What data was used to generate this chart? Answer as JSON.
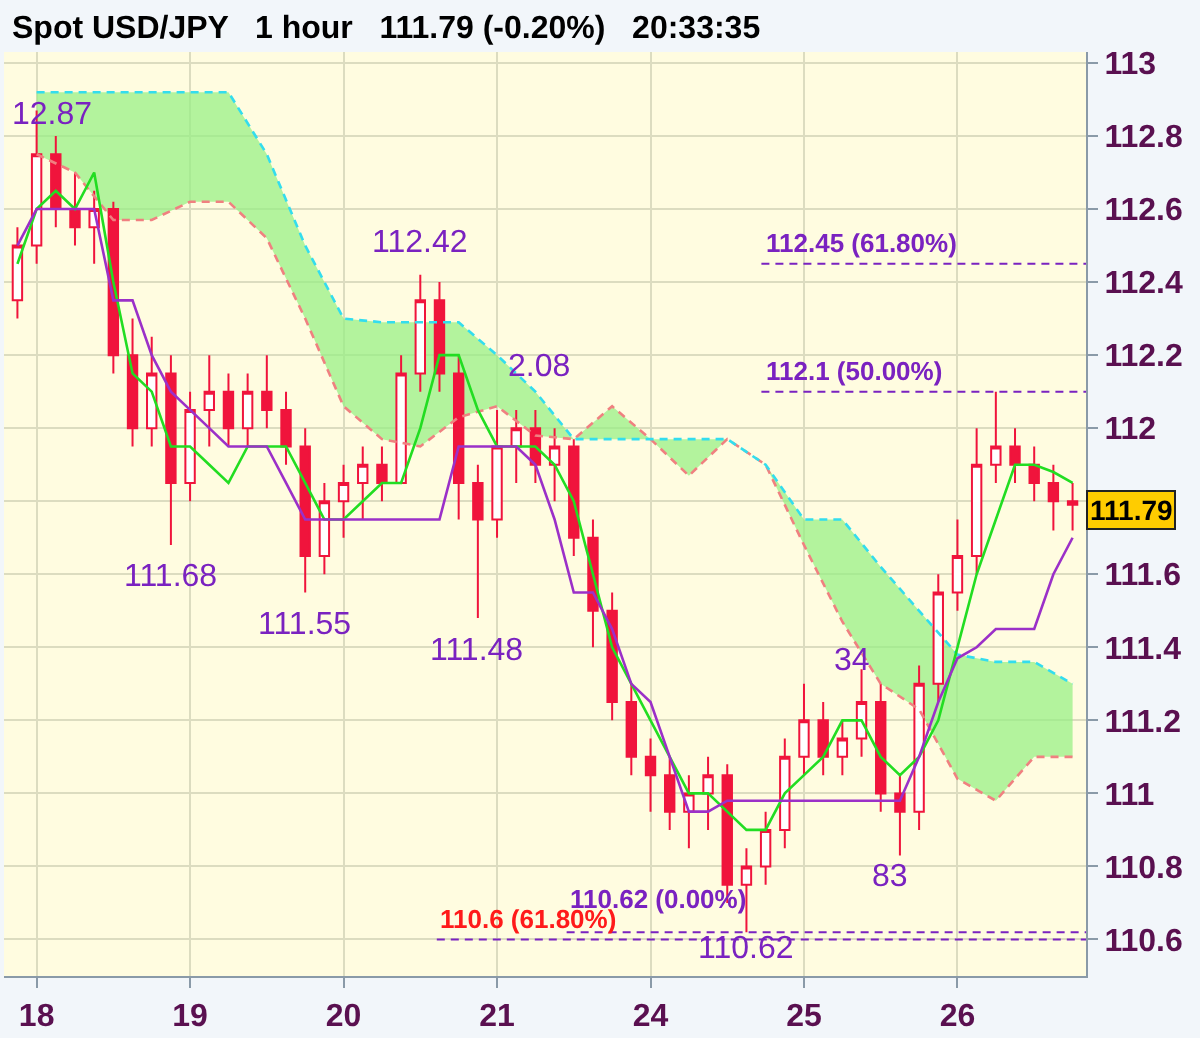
{
  "chart_data": {
    "type": "candlestick",
    "title": "Spot USD/JPY   1 hour   111.79 (-0.20%)   20:33:35",
    "categories": [
      null,
      "18",
      null,
      null,
      null,
      null,
      null,
      null,
      null,
      "19",
      null,
      null,
      null,
      null,
      null,
      null,
      null,
      "20",
      null,
      null,
      null,
      null,
      null,
      null,
      null,
      "21",
      null,
      null,
      null,
      null,
      null,
      null,
      null,
      "24",
      null,
      null,
      null,
      null,
      null,
      null,
      null,
      "25",
      null,
      null,
      null,
      null,
      null,
      null,
      null,
      "26",
      null,
      null,
      null,
      null,
      null,
      null
    ],
    "series": [
      {
        "type": "line",
        "color": "#f08080",
        "line_style": "dashed",
        "values": [
          null,
          112.75,
          null,
          112.7,
          null,
          112.57,
          null,
          112.57,
          null,
          112.62,
          null,
          112.62,
          null,
          112.52,
          null,
          112.3,
          null,
          112.06,
          null,
          111.97,
          null,
          111.95,
          null,
          112.03,
          null,
          112.06,
          null,
          111.98,
          null,
          111.97,
          null,
          112.06,
          null,
          111.97,
          null,
          111.87,
          null,
          111.97,
          null,
          111.9,
          null,
          111.68,
          null,
          111.47,
          null,
          111.3,
          null,
          111.23,
          null,
          111.04,
          null,
          110.98,
          null,
          111.1,
          null,
          111.1
        ]
      },
      {
        "type": "line",
        "color": "#33ddee",
        "line_style": "dashed",
        "lower": [
          null,
          112.75,
          null,
          112.7,
          null,
          112.57,
          null,
          112.57,
          null,
          112.62,
          null,
          112.62,
          null,
          112.52,
          null,
          112.3,
          null,
          112.06,
          null,
          111.97,
          null,
          111.95,
          null,
          112.03,
          null,
          112.06,
          null,
          111.98,
          null,
          111.97,
          null,
          112.06,
          null,
          111.97,
          null,
          111.87,
          null,
          111.97,
          null,
          111.9,
          null,
          111.68,
          null,
          111.47,
          null,
          111.3,
          null,
          111.23,
          null,
          111.04,
          null,
          110.98,
          null,
          111.1,
          null,
          111.1
        ],
        "upper": [
          null,
          112.92,
          null,
          112.92,
          null,
          112.92,
          null,
          112.92,
          null,
          112.92,
          null,
          112.92,
          null,
          112.75,
          null,
          112.5,
          null,
          112.3,
          null,
          112.29,
          null,
          112.29,
          null,
          112.29,
          null,
          112.2,
          null,
          112.1,
          null,
          111.97,
          null,
          111.97,
          null,
          111.97,
          null,
          111.97,
          null,
          111.97,
          null,
          111.9,
          null,
          111.75,
          null,
          111.75,
          null,
          111.62,
          null,
          111.5,
          null,
          111.38,
          null,
          111.36,
          null,
          111.36,
          null,
          111.3
        ],
        "values": [
          null,
          112.92,
          null,
          112.92,
          null,
          112.92,
          null,
          112.92,
          null,
          112.92,
          null,
          112.92,
          null,
          112.75,
          null,
          112.5,
          null,
          112.3,
          null,
          112.29,
          null,
          112.29,
          null,
          112.29,
          null,
          112.2,
          null,
          112.1,
          null,
          111.97,
          null,
          111.97,
          null,
          111.97,
          null,
          111.97,
          null,
          111.97,
          null,
          111.9,
          null,
          111.75,
          null,
          111.75,
          null,
          111.62,
          null,
          111.5,
          null,
          111.38,
          null,
          111.36,
          null,
          111.36,
          null,
          111.3
        ]
      },
      {
        "type": "line",
        "color": "#22dd22",
        "line_style": "solid",
        "values": [
          112.45,
          112.6,
          112.65,
          112.6,
          112.7,
          112.4,
          112.15,
          112.1,
          111.95,
          111.95,
          111.9,
          111.85,
          111.95,
          111.95,
          111.95,
          111.85,
          111.75,
          111.75,
          111.8,
          111.85,
          111.85,
          112.0,
          112.2,
          112.2,
          112.05,
          111.95,
          111.95,
          111.95,
          111.9,
          111.8,
          111.6,
          111.4,
          111.3,
          111.2,
          111.1,
          111.0,
          111.0,
          110.95,
          110.9,
          110.9,
          111.0,
          111.05,
          111.1,
          111.2,
          111.2,
          111.1,
          111.05,
          111.1,
          111.2,
          111.4,
          111.6,
          111.75,
          111.9,
          111.9,
          111.88,
          111.85
        ]
      },
      {
        "type": "line",
        "color": "#9b30c8",
        "line_style": "solid",
        "values": [
          112.5,
          112.6,
          112.6,
          112.6,
          112.6,
          112.35,
          112.35,
          112.2,
          112.1,
          112.05,
          112.0,
          111.95,
          111.95,
          111.95,
          111.85,
          111.75,
          111.75,
          111.75,
          111.75,
          111.75,
          111.75,
          111.75,
          111.75,
          111.95,
          111.95,
          111.95,
          111.95,
          111.9,
          111.75,
          111.55,
          111.55,
          111.45,
          111.3,
          111.25,
          111.1,
          110.95,
          110.95,
          110.98,
          110.98,
          110.98,
          110.98,
          110.98,
          110.98,
          110.98,
          110.98,
          110.98,
          110.98,
          111.1,
          111.25,
          111.37,
          111.4,
          111.45,
          111.45,
          111.45,
          111.6,
          111.7
        ]
      },
      {
        "color": "#f0143c",
        "ohlc": [
          [
            112.35,
            112.55,
            112.3,
            112.5
          ],
          [
            112.5,
            112.87,
            112.45,
            112.75
          ],
          [
            112.75,
            112.8,
            112.55,
            112.6
          ],
          [
            112.6,
            112.7,
            112.5,
            112.55
          ],
          [
            112.55,
            112.65,
            112.45,
            112.6
          ],
          [
            112.6,
            112.62,
            112.15,
            112.2
          ],
          [
            112.2,
            112.3,
            111.95,
            112.0
          ],
          [
            112.0,
            112.25,
            111.95,
            112.15
          ],
          [
            112.15,
            112.2,
            111.68,
            111.85
          ],
          [
            111.85,
            112.1,
            111.8,
            112.05
          ],
          [
            112.05,
            112.2,
            111.95,
            112.1
          ],
          [
            112.1,
            112.15,
            111.95,
            112.0
          ],
          [
            112.0,
            112.15,
            111.95,
            112.1
          ],
          [
            112.1,
            112.2,
            112.0,
            112.05
          ],
          [
            112.05,
            112.1,
            111.9,
            111.95
          ],
          [
            111.95,
            112.0,
            111.55,
            111.65
          ],
          [
            111.65,
            111.85,
            111.6,
            111.8
          ],
          [
            111.8,
            111.9,
            111.7,
            111.85
          ],
          [
            111.85,
            111.95,
            111.75,
            111.9
          ],
          [
            111.9,
            111.95,
            111.8,
            111.85
          ],
          [
            111.85,
            112.2,
            111.85,
            112.15
          ],
          [
            112.15,
            112.42,
            112.1,
            112.35
          ],
          [
            112.35,
            112.4,
            112.1,
            112.15
          ],
          [
            112.15,
            112.2,
            111.75,
            111.85
          ],
          [
            111.85,
            111.9,
            111.48,
            111.75
          ],
          [
            111.75,
            112.05,
            111.7,
            111.95
          ],
          [
            111.95,
            112.05,
            111.85,
            112.0
          ],
          [
            112.0,
            112.05,
            111.85,
            111.9
          ],
          [
            111.9,
            112.0,
            111.8,
            111.95
          ],
          [
            111.95,
            111.97,
            111.65,
            111.7
          ],
          [
            111.7,
            111.75,
            111.4,
            111.5
          ],
          [
            111.5,
            111.55,
            111.2,
            111.25
          ],
          [
            111.25,
            111.3,
            111.05,
            111.1
          ],
          [
            111.1,
            111.15,
            110.95,
            111.05
          ],
          [
            111.05,
            111.1,
            110.9,
            110.95
          ],
          [
            110.95,
            111.05,
            110.85,
            111.0
          ],
          [
            111.0,
            111.1,
            110.9,
            111.05
          ],
          [
            111.05,
            111.08,
            110.7,
            110.75
          ],
          [
            110.75,
            110.85,
            110.62,
            110.8
          ],
          [
            110.8,
            110.95,
            110.75,
            110.9
          ],
          [
            110.9,
            111.15,
            110.85,
            111.1
          ],
          [
            111.1,
            111.3,
            111.05,
            111.2
          ],
          [
            111.2,
            111.25,
            111.05,
            111.1
          ],
          [
            111.1,
            111.2,
            111.05,
            111.15
          ],
          [
            111.15,
            111.34,
            111.1,
            111.25
          ],
          [
            111.25,
            111.3,
            110.95,
            111.0
          ],
          [
            111.0,
            111.05,
            110.83,
            110.95
          ],
          [
            110.95,
            111.35,
            110.9,
            111.3
          ],
          [
            111.3,
            111.6,
            111.25,
            111.55
          ],
          [
            111.55,
            111.75,
            111.5,
            111.65
          ],
          [
            111.65,
            112.0,
            111.6,
            111.9
          ],
          [
            111.9,
            112.1,
            111.85,
            111.95
          ],
          [
            111.95,
            112.0,
            111.85,
            111.9
          ],
          [
            111.9,
            111.95,
            111.8,
            111.85
          ],
          [
            111.85,
            111.9,
            111.72,
            111.8
          ],
          [
            111.8,
            111.85,
            111.72,
            111.79
          ]
        ]
      }
    ],
    "ylim": [
      110.5,
      113.03
    ],
    "yticks": [
      113,
      112.8,
      112.6,
      112.4,
      112.2,
      112,
      {
        "value": 111.8,
        "label": null
      },
      111.6,
      111.4,
      111.2,
      111,
      110.8,
      110.6
    ],
    "ref_lines": [
      {
        "axis": "y",
        "value": 112.45,
        "label": "112.45 (61.80%)",
        "color": "#7a22c0",
        "line_style": "dashed"
      },
      {
        "axis": "y",
        "value": 112.1,
        "label": "112.1 (50.00%)",
        "color": "#7a22c0",
        "line_style": "dashed"
      },
      {
        "axis": "y",
        "value": 110.62,
        "label": "110.62 (0.00%)",
        "color": "#7a22c0",
        "line_style": "dashed"
      },
      {
        "axis": "y",
        "value": 110.6,
        "label": "110.6 (61.80%)",
        "color": "#7a22c0",
        "line_style": "dashed"
      }
    ],
    "annotations": [
      "12.87",
      {
        "text": "111.68",
        "y": 111.68
      },
      {
        "text": "111.55",
        "y": 111.55
      },
      {
        "text": "112.42",
        "y": 112.42
      },
      {
        "text": "111.48",
        "y": 111.48
      },
      {
        "text": "2.08",
        "y": 112.08
      },
      {
        "text": "110.62",
        "y": 110.62
      },
      "34",
      "83",
      "111.79"
    ],
    "grid": true
  }
}
